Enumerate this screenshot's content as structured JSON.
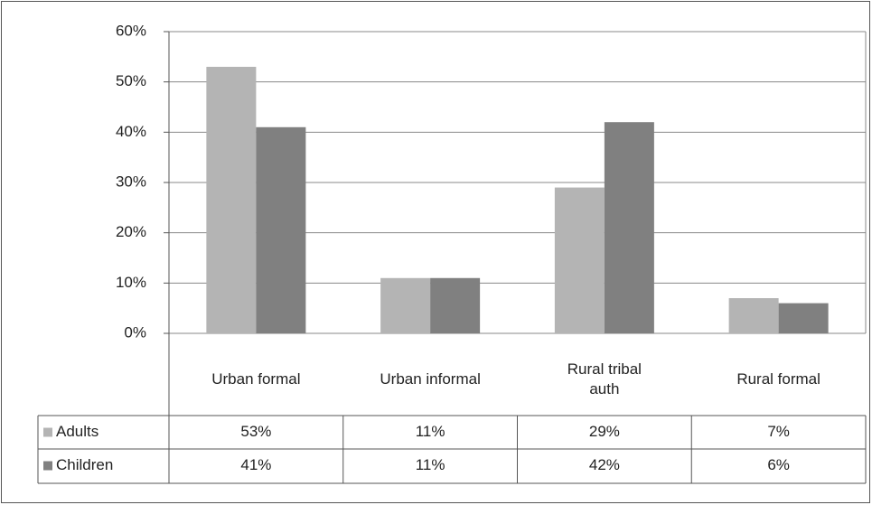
{
  "chart_data": {
    "type": "bar",
    "categories": [
      "Urban formal",
      "Urban informal",
      "Rural tribal auth",
      "Rural formal"
    ],
    "series": [
      {
        "name": "Adults",
        "color": "#b4b4b4",
        "values": [
          53,
          11,
          29,
          7
        ],
        "value_labels": [
          "53%",
          "11%",
          "29%",
          "7%"
        ]
      },
      {
        "name": "Children",
        "color": "#808080",
        "values": [
          41,
          11,
          42,
          6
        ],
        "value_labels": [
          "41%",
          "11%",
          "42%",
          "6%"
        ]
      }
    ],
    "ylim": [
      0,
      60
    ],
    "yticks": [
      {
        "value": 0,
        "label": "0%"
      },
      {
        "value": 10,
        "label": "10%"
      },
      {
        "value": 20,
        "label": "20%"
      },
      {
        "value": 30,
        "label": "30%"
      },
      {
        "value": 40,
        "label": "40%"
      },
      {
        "value": 50,
        "label": "50%"
      },
      {
        "value": 60,
        "label": "60%"
      }
    ],
    "grid": true,
    "data_table": true
  }
}
